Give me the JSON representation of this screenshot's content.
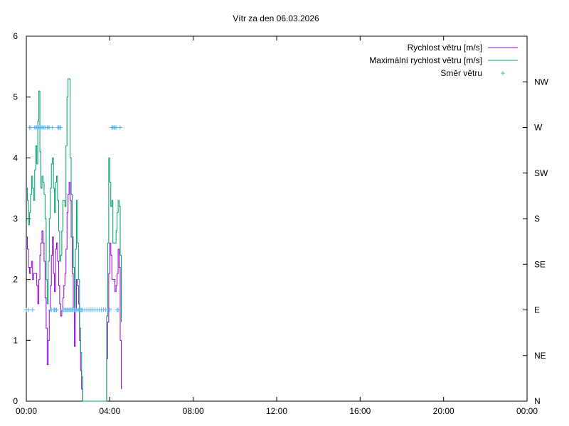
{
  "chart_data": {
    "type": "line",
    "title": "Vítr za den 06.03.2026",
    "xlabel": "",
    "ylabel": "",
    "x_ticks": [
      "00:00",
      "04:00",
      "08:00",
      "12:00",
      "16:00",
      "20:00",
      "00:00"
    ],
    "x_range_minutes": [
      0,
      1440
    ],
    "y_ticks": [
      "0",
      "1",
      "2",
      "3",
      "4",
      "5",
      "6"
    ],
    "ylim": [
      0,
      6
    ],
    "y2_ticks": [
      "N",
      "NE",
      "E",
      "SE",
      "S",
      "SW",
      "W",
      "NW"
    ],
    "y2lim": [
      0,
      8
    ],
    "legend_position": "top-right",
    "colors": {
      "speed": "#9400d3",
      "gust": "#009e73",
      "direction": "#56b4e9",
      "axis": "#000000"
    },
    "series": [
      {
        "name": "Rychlost větru [m/s]",
        "key": "speed",
        "style": "steps",
        "points": [
          [
            0,
            2.7
          ],
          [
            3,
            2.5
          ],
          [
            6,
            2.2
          ],
          [
            9,
            2.1
          ],
          [
            12,
            2.2
          ],
          [
            15,
            2.3
          ],
          [
            18,
            2.0
          ],
          [
            21,
            2.1
          ],
          [
            24,
            2.1
          ],
          [
            27,
            2.1
          ],
          [
            30,
            1.9
          ],
          [
            33,
            1.6
          ],
          [
            36,
            2.0
          ],
          [
            39,
            2.4
          ],
          [
            42,
            2.6
          ],
          [
            45,
            2.8
          ],
          [
            48,
            2.6
          ],
          [
            51,
            2.3
          ],
          [
            54,
            1.7
          ],
          [
            57,
            1.2
          ],
          [
            60,
            0.6
          ],
          [
            63,
            1.0
          ],
          [
            66,
            1.5
          ],
          [
            69,
            1.9
          ],
          [
            72,
            2.4
          ],
          [
            75,
            2.7
          ],
          [
            78,
            2.1
          ],
          [
            81,
            1.8
          ],
          [
            84,
            2.5
          ],
          [
            87,
            2.6
          ],
          [
            90,
            2.3
          ],
          [
            93,
            1.9
          ],
          [
            96,
            1.6
          ],
          [
            99,
            1.4
          ],
          [
            102,
            1.5
          ],
          [
            105,
            1.7
          ],
          [
            108,
            1.9
          ],
          [
            111,
            2.1
          ],
          [
            114,
            2.5
          ],
          [
            117,
            3.1
          ],
          [
            120,
            3.4
          ],
          [
            123,
            3.6
          ],
          [
            126,
            3.3
          ],
          [
            129,
            2.7
          ],
          [
            132,
            2.1
          ],
          [
            135,
            1.5
          ],
          [
            138,
            0.9
          ],
          [
            141,
            1.5
          ],
          [
            144,
            2.0
          ],
          [
            147,
            1.9
          ],
          [
            150,
            1.6
          ],
          [
            153,
            1.0
          ],
          [
            156,
            0.5
          ],
          [
            159,
            0.2
          ],
          [
            162,
            0.0
          ],
          [
            165,
            0.0
          ],
          [
            168,
            0.0
          ],
          [
            171,
            0.0
          ],
          [
            174,
            0.0
          ],
          [
            177,
            0.0
          ],
          [
            180,
            0.0
          ],
          [
            183,
            0.0
          ],
          [
            186,
            0.0
          ],
          [
            189,
            0.0
          ],
          [
            192,
            0.0
          ],
          [
            195,
            0.0
          ],
          [
            198,
            0.0
          ],
          [
            201,
            0.0
          ],
          [
            204,
            0.0
          ],
          [
            207,
            0.0
          ],
          [
            210,
            0.0
          ],
          [
            213,
            0.0
          ],
          [
            216,
            0.0
          ],
          [
            219,
            0.0
          ],
          [
            222,
            0.0
          ],
          [
            225,
            0.0
          ],
          [
            228,
            0.0
          ],
          [
            231,
            0.7
          ],
          [
            234,
            1.3
          ],
          [
            237,
            2.1
          ],
          [
            240,
            2.6
          ],
          [
            243,
            2.4
          ],
          [
            246,
            2.0
          ],
          [
            249,
            2.0
          ],
          [
            252,
            2.0
          ],
          [
            255,
            1.8
          ],
          [
            258,
            1.9
          ],
          [
            261,
            2.1
          ],
          [
            264,
            2.5
          ],
          [
            267,
            2.2
          ],
          [
            270,
            1.0
          ],
          [
            273,
            0.2
          ]
        ]
      },
      {
        "name": "Maximální rychlost větru [m/s]",
        "key": "gust",
        "style": "steps",
        "points": [
          [
            0,
            3.5
          ],
          [
            3,
            3.3
          ],
          [
            6,
            2.9
          ],
          [
            9,
            3.1
          ],
          [
            12,
            3.4
          ],
          [
            15,
            3.7
          ],
          [
            18,
            3.5
          ],
          [
            21,
            3.3
          ],
          [
            24,
            3.8
          ],
          [
            27,
            4.2
          ],
          [
            30,
            3.9
          ],
          [
            33,
            4.6
          ],
          [
            36,
            5.1
          ],
          [
            39,
            4.1
          ],
          [
            42,
            3.5
          ],
          [
            45,
            3.7
          ],
          [
            48,
            3.6
          ],
          [
            51,
            3.4
          ],
          [
            54,
            3.0
          ],
          [
            57,
            2.0
          ],
          [
            60,
            1.6
          ],
          [
            63,
            2.3
          ],
          [
            66,
            3.0
          ],
          [
            69,
            3.5
          ],
          [
            72,
            3.9
          ],
          [
            75,
            4.0
          ],
          [
            78,
            3.5
          ],
          [
            81,
            3.1
          ],
          [
            84,
            3.6
          ],
          [
            87,
            3.7
          ],
          [
            90,
            3.3
          ],
          [
            93,
            2.8
          ],
          [
            96,
            2.3
          ],
          [
            99,
            2.4
          ],
          [
            102,
            2.8
          ],
          [
            105,
            3.3
          ],
          [
            108,
            3.3
          ],
          [
            111,
            3.2
          ],
          [
            114,
            4.2
          ],
          [
            117,
            5.0
          ],
          [
            120,
            5.3
          ],
          [
            123,
            5.3
          ],
          [
            126,
            4.0
          ],
          [
            129,
            3.4
          ],
          [
            132,
            2.7
          ],
          [
            135,
            2.2
          ],
          [
            138,
            1.5
          ],
          [
            141,
            2.5
          ],
          [
            144,
            3.3
          ],
          [
            147,
            2.6
          ],
          [
            150,
            2.0
          ],
          [
            153,
            1.2
          ],
          [
            156,
            0.8
          ],
          [
            159,
            0.4
          ],
          [
            162,
            0.0
          ],
          [
            165,
            0.0
          ],
          [
            168,
            0.0
          ],
          [
            171,
            0.0
          ],
          [
            174,
            0.0
          ],
          [
            177,
            0.0
          ],
          [
            180,
            0.0
          ],
          [
            183,
            0.0
          ],
          [
            186,
            0.0
          ],
          [
            189,
            0.0
          ],
          [
            192,
            0.0
          ],
          [
            195,
            0.0
          ],
          [
            198,
            0.0
          ],
          [
            201,
            0.0
          ],
          [
            204,
            0.0
          ],
          [
            207,
            0.0
          ],
          [
            210,
            0.0
          ],
          [
            213,
            0.0
          ],
          [
            216,
            0.0
          ],
          [
            219,
            0.0
          ],
          [
            222,
            0.0
          ],
          [
            225,
            0.0
          ],
          [
            228,
            0.0
          ],
          [
            231,
            1.4
          ],
          [
            234,
            2.6
          ],
          [
            237,
            4.0
          ],
          [
            240,
            3.6
          ],
          [
            243,
            3.2
          ],
          [
            246,
            3.3
          ],
          [
            249,
            2.6
          ],
          [
            252,
            2.6
          ],
          [
            255,
            2.6
          ],
          [
            258,
            2.8
          ],
          [
            261,
            3.1
          ],
          [
            264,
            3.3
          ],
          [
            267,
            3.2
          ],
          [
            270,
            2.4
          ],
          [
            273,
            1.3
          ]
        ]
      },
      {
        "name": "Směr větru",
        "key": "direction",
        "style": "points",
        "points": [
          [
            0,
            2
          ],
          [
            6,
            2
          ],
          [
            9,
            6
          ],
          [
            12,
            6
          ],
          [
            18,
            2
          ],
          [
            24,
            6
          ],
          [
            27,
            6
          ],
          [
            30,
            6
          ],
          [
            33,
            6
          ],
          [
            36,
            6
          ],
          [
            39,
            6
          ],
          [
            42,
            6
          ],
          [
            45,
            6
          ],
          [
            48,
            6
          ],
          [
            51,
            6
          ],
          [
            54,
            6
          ],
          [
            60,
            6
          ],
          [
            63,
            6
          ],
          [
            66,
            6
          ],
          [
            69,
            2
          ],
          [
            72,
            2
          ],
          [
            75,
            6
          ],
          [
            78,
            2
          ],
          [
            81,
            2
          ],
          [
            84,
            2
          ],
          [
            87,
            2
          ],
          [
            90,
            6
          ],
          [
            93,
            6
          ],
          [
            96,
            6
          ],
          [
            99,
            6
          ],
          [
            105,
            2
          ],
          [
            108,
            2
          ],
          [
            111,
            2
          ],
          [
            114,
            2
          ],
          [
            117,
            2
          ],
          [
            120,
            2
          ],
          [
            123,
            2
          ],
          [
            126,
            2
          ],
          [
            129,
            2
          ],
          [
            132,
            2
          ],
          [
            135,
            2
          ],
          [
            138,
            2
          ],
          [
            141,
            2
          ],
          [
            144,
            2
          ],
          [
            147,
            2
          ],
          [
            150,
            2
          ],
          [
            153,
            2
          ],
          [
            156,
            2
          ],
          [
            159,
            2
          ],
          [
            162,
            2
          ],
          [
            168,
            2
          ],
          [
            174,
            2
          ],
          [
            180,
            2
          ],
          [
            186,
            2
          ],
          [
            192,
            2
          ],
          [
            198,
            2
          ],
          [
            204,
            2
          ],
          [
            210,
            2
          ],
          [
            216,
            2
          ],
          [
            222,
            2
          ],
          [
            228,
            2
          ],
          [
            234,
            2
          ],
          [
            240,
            2
          ],
          [
            246,
            6
          ],
          [
            249,
            6
          ],
          [
            252,
            6
          ],
          [
            255,
            6
          ],
          [
            258,
            6
          ],
          [
            261,
            2
          ],
          [
            264,
            2
          ],
          [
            270,
            6
          ]
        ]
      }
    ]
  }
}
